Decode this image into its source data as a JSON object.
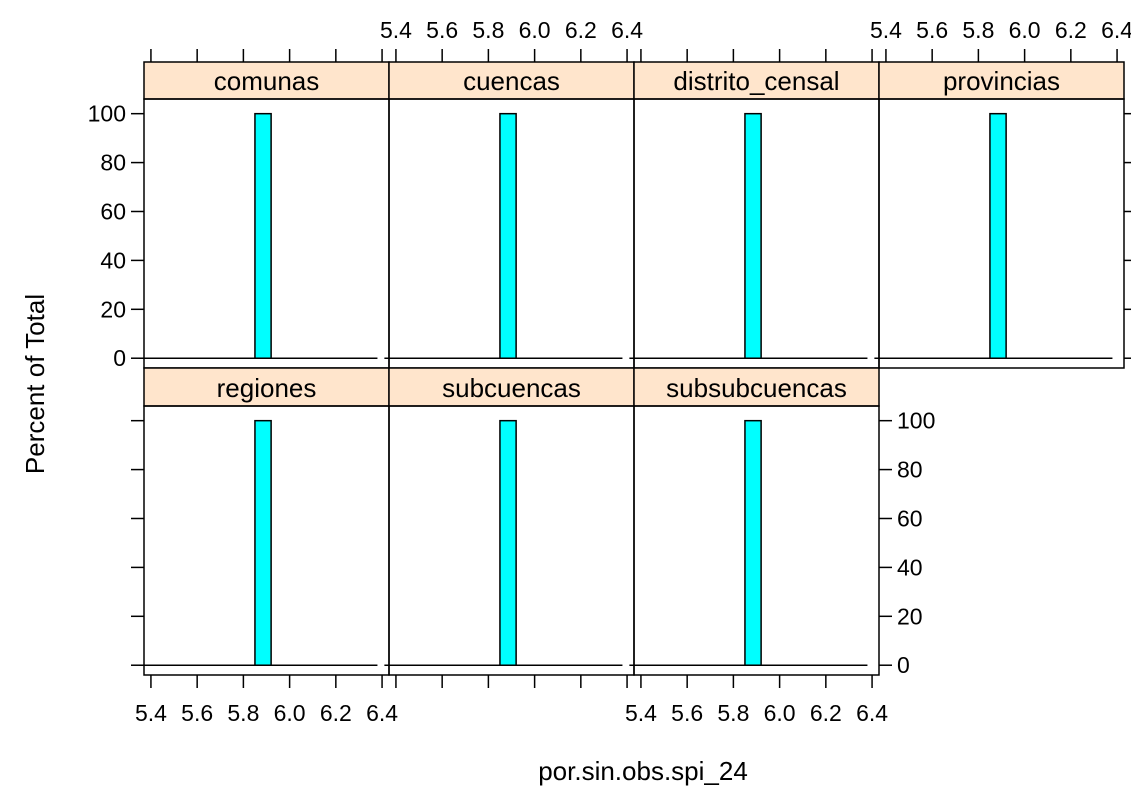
{
  "chart_data": {
    "type": "bar",
    "layout": "lattice histogram, 4 columns x 2 rows",
    "xlabel": "por.sin.obs.spi_24",
    "ylabel": "Percent of Total",
    "xlim": [
      5.37,
      6.43
    ],
    "ylim": [
      -4,
      106
    ],
    "x_ticks": [
      5.4,
      5.6,
      5.8,
      6.0,
      6.2,
      6.4
    ],
    "x_tick_labels": [
      "5.4",
      "5.6",
      "5.8",
      "6.0",
      "6.2",
      "6.4"
    ],
    "y_ticks": [
      0,
      20,
      40,
      60,
      80,
      100
    ],
    "y_tick_labels": [
      "0",
      "20",
      "40",
      "60",
      "80",
      "100"
    ],
    "baseline_range": [
      5.35,
      6.38
    ],
    "colors": {
      "bar_fill": "#00ffff",
      "strip_fill": "#ffe5cc",
      "border": "#000000"
    },
    "panels": [
      {
        "label": "comunas",
        "bin": [
          5.85,
          5.92
        ],
        "percent": 100
      },
      {
        "label": "cuencas",
        "bin": [
          5.85,
          5.92
        ],
        "percent": 100
      },
      {
        "label": "distrito_censal",
        "bin": [
          5.85,
          5.92
        ],
        "percent": 100
      },
      {
        "label": "provincias",
        "bin": [
          5.85,
          5.92
        ],
        "percent": 100
      },
      {
        "label": "regiones",
        "bin": [
          5.85,
          5.92
        ],
        "percent": 100
      },
      {
        "label": "subcuencas",
        "bin": [
          5.85,
          5.92
        ],
        "percent": 100
      },
      {
        "label": "subsubcuencas",
        "bin": [
          5.85,
          5.92
        ],
        "percent": 100
      }
    ]
  }
}
